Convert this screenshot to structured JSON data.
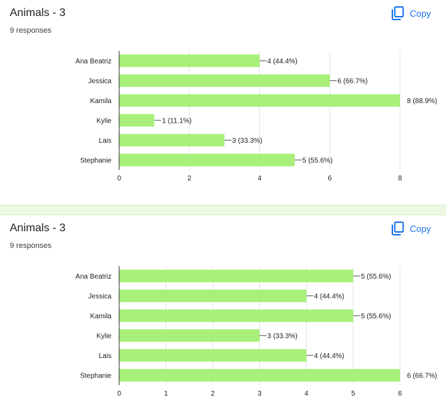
{
  "cards": [
    {
      "title": "Animals - 3",
      "responses": "9 responses",
      "copy_label": "Copy",
      "copy_icon": "copy-icon"
    },
    {
      "title": "Animals - 3",
      "responses": "9 responses",
      "copy_label": "Copy",
      "copy_icon": "copy-icon"
    }
  ],
  "colors": {
    "bar": "#a8f07a",
    "accent": "#1a73e8",
    "divider": "#eef9e3"
  },
  "chart_data": [
    {
      "type": "bar",
      "orientation": "horizontal",
      "categories": [
        "Ana Beatriz",
        "Jessica",
        "Kamila",
        "Kylie",
        "Lais",
        "Stephanie"
      ],
      "values": [
        4,
        6,
        8,
        1,
        3,
        5
      ],
      "value_labels": [
        "4 (44.4%)",
        "6 (66.7%)",
        "8 (88.9%)",
        "1 (11.1%)",
        "3 (33.3%)",
        "5 (55.6%)"
      ],
      "xlim": [
        0,
        8
      ],
      "xticks": [
        "0",
        "2",
        "4",
        "6",
        "8"
      ],
      "grid": true
    },
    {
      "type": "bar",
      "orientation": "horizontal",
      "categories": [
        "Ana Beatriz",
        "Jessica",
        "Kamila",
        "Kylie",
        "Lais",
        "Stephanie"
      ],
      "values": [
        5,
        4,
        5,
        3,
        4,
        6
      ],
      "value_labels": [
        "5 (55.6%)",
        "4 (44.4%)",
        "5 (55.6%)",
        "3 (33.3%)",
        "4 (44.4%)",
        "6 (66.7%)"
      ],
      "xlim": [
        0,
        6
      ],
      "xticks": [
        "0",
        "1",
        "2",
        "3",
        "4",
        "5",
        "6"
      ],
      "grid": true
    }
  ]
}
